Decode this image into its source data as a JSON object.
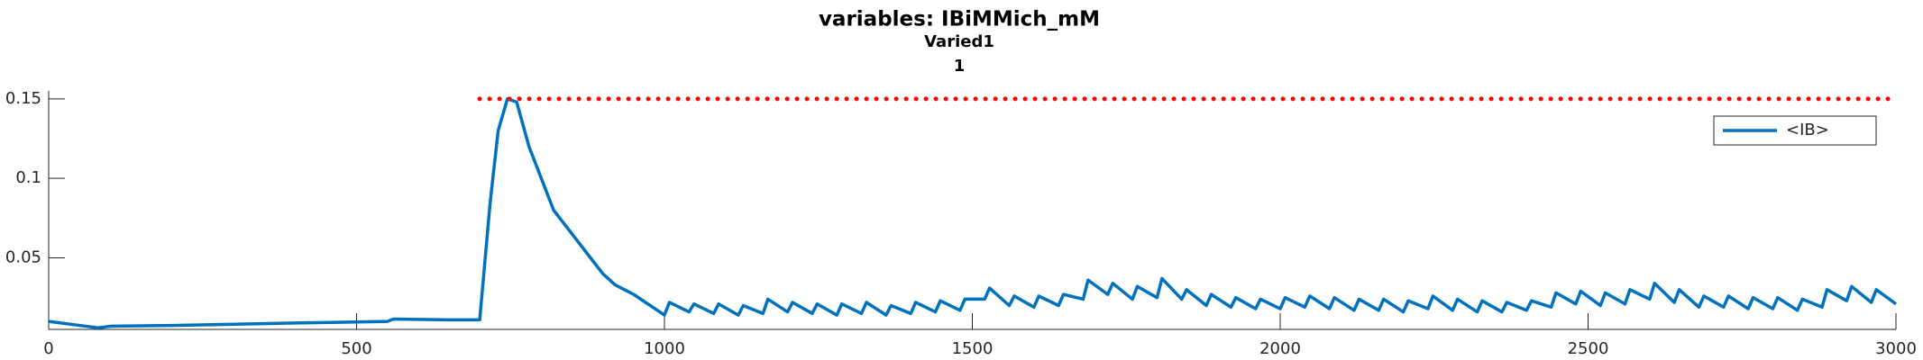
{
  "chart_data": {
    "type": "line",
    "title": "variables: IBiMMich_mM",
    "subtitle": "Varied1",
    "subtitle2": "1",
    "xlim": [
      0,
      3000
    ],
    "xticks": [
      0,
      500,
      1000,
      1500,
      2000,
      2500,
      3000
    ],
    "ylim": [
      0.005,
      0.155
    ],
    "yticks": [
      0.05,
      0.1,
      0.15
    ],
    "grid": false,
    "legend": "upper right",
    "series": [
      {
        "name": "<IB>",
        "color": "#0072bd",
        "style": "solid",
        "x": [
          0,
          40,
          80,
          100,
          200,
          400,
          550,
          560,
          650,
          700,
          717,
          730,
          745,
          760,
          780,
          800,
          820,
          840,
          860,
          880,
          900,
          920,
          950,
          1000,
          1008,
          1040,
          1048,
          1080,
          1088,
          1120,
          1128,
          1160,
          1168,
          1200,
          1208,
          1240,
          1248,
          1280,
          1288,
          1320,
          1328,
          1360,
          1368,
          1400,
          1408,
          1440,
          1448,
          1480,
          1488,
          1520,
          1528,
          1560,
          1568,
          1600,
          1608,
          1640,
          1648,
          1680,
          1688,
          1720,
          1728,
          1760,
          1768,
          1800,
          1808,
          1840,
          1848,
          1880,
          1888,
          1920,
          1928,
          1960,
          1968,
          2000,
          2008,
          2040,
          2048,
          2080,
          2088,
          2120,
          2128,
          2160,
          2168,
          2200,
          2208,
          2240,
          2248,
          2280,
          2288,
          2320,
          2328,
          2360,
          2368,
          2400,
          2408,
          2440,
          2448,
          2480,
          2488,
          2520,
          2528,
          2560,
          2568,
          2600,
          2608,
          2640,
          2648,
          2680,
          2688,
          2720,
          2728,
          2760,
          2768,
          2800,
          2808,
          2840,
          2848,
          2880,
          2888,
          2920,
          2928,
          2960,
          2968,
          3000
        ],
        "values": [
          0.01,
          0.008,
          0.006,
          0.007,
          0.0075,
          0.009,
          0.01,
          0.0115,
          0.011,
          0.011,
          0.085,
          0.13,
          0.15,
          0.148,
          0.12,
          0.1,
          0.08,
          0.07,
          0.06,
          0.05,
          0.04,
          0.033,
          0.027,
          0.014,
          0.022,
          0.016,
          0.021,
          0.015,
          0.021,
          0.014,
          0.02,
          0.015,
          0.024,
          0.016,
          0.022,
          0.015,
          0.021,
          0.014,
          0.021,
          0.015,
          0.022,
          0.014,
          0.02,
          0.015,
          0.022,
          0.016,
          0.023,
          0.017,
          0.024,
          0.024,
          0.031,
          0.02,
          0.026,
          0.019,
          0.026,
          0.02,
          0.027,
          0.024,
          0.036,
          0.027,
          0.034,
          0.024,
          0.032,
          0.025,
          0.037,
          0.024,
          0.03,
          0.02,
          0.027,
          0.019,
          0.025,
          0.018,
          0.024,
          0.018,
          0.025,
          0.019,
          0.026,
          0.018,
          0.025,
          0.017,
          0.024,
          0.017,
          0.024,
          0.016,
          0.023,
          0.018,
          0.026,
          0.017,
          0.024,
          0.016,
          0.023,
          0.016,
          0.022,
          0.017,
          0.023,
          0.019,
          0.028,
          0.021,
          0.029,
          0.02,
          0.028,
          0.021,
          0.03,
          0.024,
          0.034,
          0.022,
          0.03,
          0.019,
          0.026,
          0.019,
          0.026,
          0.018,
          0.025,
          0.018,
          0.025,
          0.017,
          0.024,
          0.019,
          0.03,
          0.023,
          0.032,
          0.022,
          0.03,
          0.021
        ]
      },
      {
        "color": "#ff0000",
        "style": "dotted",
        "x": [
          700,
          3000
        ],
        "values": [
          0.15,
          0.15
        ]
      }
    ]
  }
}
